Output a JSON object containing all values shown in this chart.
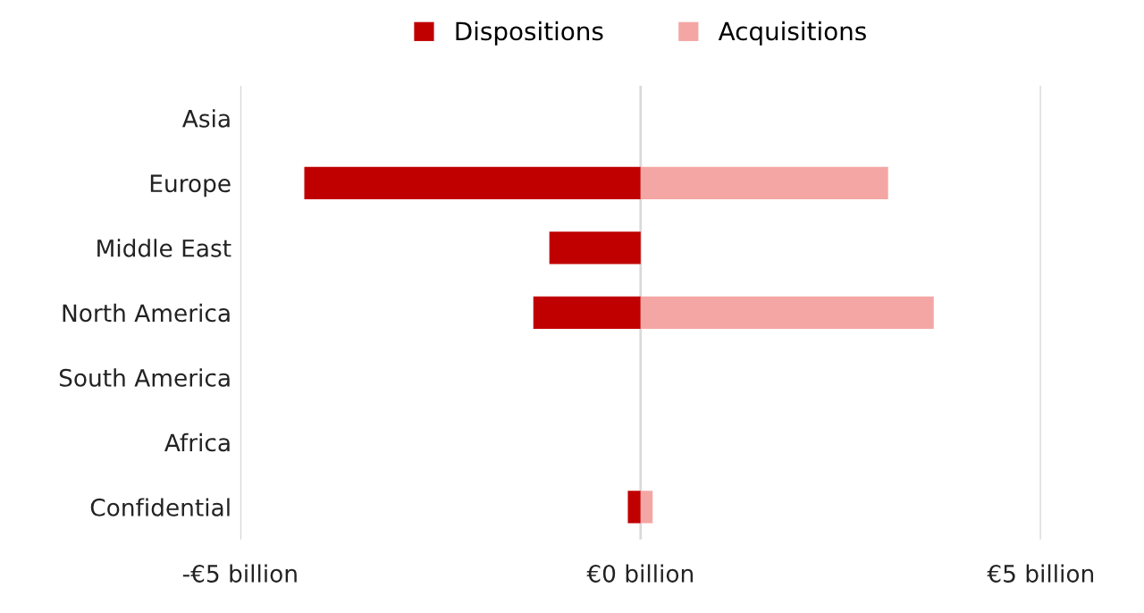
{
  "chart_data": {
    "type": "bar",
    "orientation": "horizontal",
    "categories": [
      "Asia",
      "Europe",
      "Middle East",
      "North America",
      "South America",
      "Africa",
      "Confidential"
    ],
    "series": [
      {
        "name": "Dispositions",
        "color": "#c00000",
        "values": [
          null,
          -4.2,
          -1.14,
          -1.34,
          null,
          null,
          -0.16
        ]
      },
      {
        "name": "Acquisitions",
        "color": "#f4a6a4",
        "values": [
          null,
          3.09,
          null,
          3.66,
          null,
          null,
          0.15
        ]
      }
    ],
    "xlim": [
      -5,
      5
    ],
    "xticks": [
      {
        "value": -5,
        "label": "-€5 billion"
      },
      {
        "value": 0,
        "label": "€0 billion"
      },
      {
        "value": 5,
        "label": "€5 billion"
      }
    ],
    "grid": "x",
    "legend": "top"
  }
}
